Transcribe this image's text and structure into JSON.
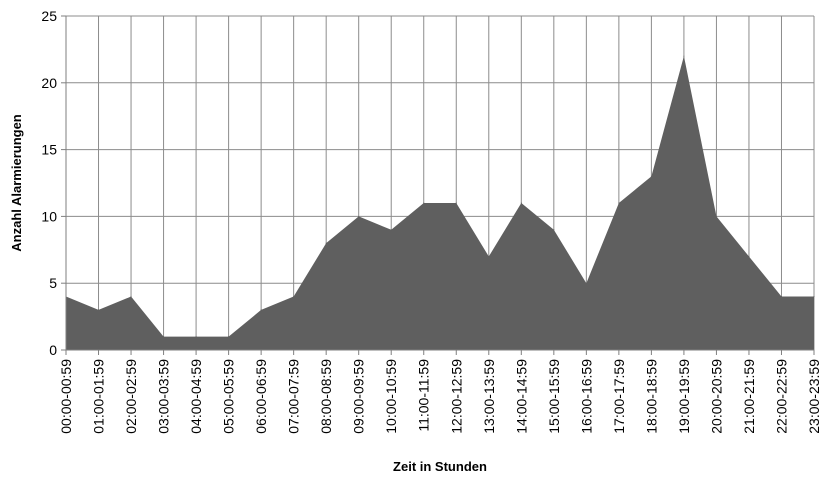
{
  "chart_data": {
    "type": "area",
    "title": "",
    "xlabel": "Zeit in Stunden",
    "ylabel": "Anzahl Alarmierungen",
    "ylim": [
      0,
      25
    ],
    "yticks": [
      0,
      5,
      10,
      15,
      20,
      25
    ],
    "grid": true,
    "categories": [
      "00:00-00:59",
      "01:00-01:59",
      "02:00-02:59",
      "03:00-03:59",
      "04:00-04:59",
      "05:00-05:59",
      "06:00-06:59",
      "07:00-07:59",
      "08:00-08:59",
      "09:00-09:59",
      "10:00-10:59",
      "11:00-11:59",
      "12:00-12:59",
      "13:00-13:59",
      "14:00-14:59",
      "15:00-15:59",
      "16:00-16:59",
      "17:00-17:59",
      "18:00-18:59",
      "19:00-19:59",
      "20:00-20:59",
      "21:00-21:59",
      "22:00-22:59",
      "23:00-23:59"
    ],
    "series": [
      {
        "color": "#5f5f5f",
        "values": [
          4,
          3,
          4,
          1,
          1,
          1,
          3,
          4,
          8,
          10,
          9,
          11,
          11,
          7,
          11,
          9,
          5,
          11,
          13,
          22,
          10,
          7,
          4,
          4
        ]
      }
    ]
  }
}
